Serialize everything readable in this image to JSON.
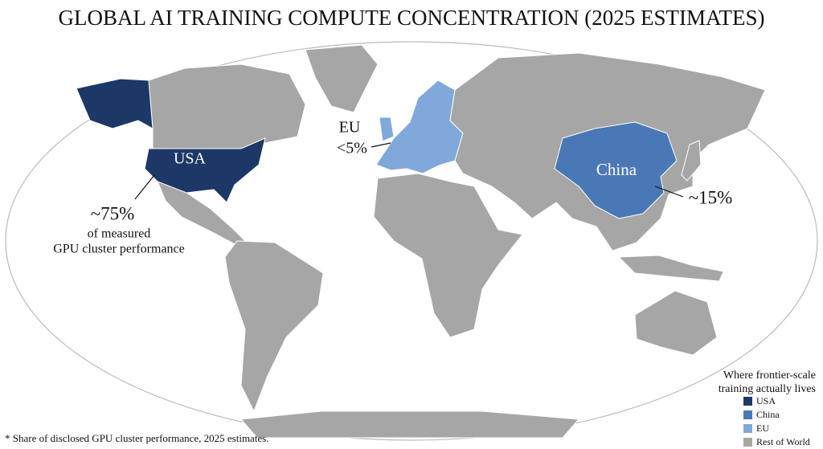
{
  "title": "GLOBAL AI TRAINING COMPUTE CONCENTRATION (2025 ESTIMATES)",
  "regions": {
    "usa": {
      "label": "USA",
      "share": "~75%",
      "note": [
        "of measured",
        "GPU cluster performance"
      ]
    },
    "eu": {
      "label": "EU",
      "share": "<5%"
    },
    "china": {
      "label": "China",
      "share": "~15%"
    }
  },
  "legend": {
    "title": [
      "Where frontier-scale",
      "training actually lives"
    ],
    "items": [
      {
        "name": "USA",
        "color": "#1d3867"
      },
      {
        "name": "China",
        "color": "#4a78b6"
      },
      {
        "name": "EU",
        "color": "#80a8da"
      },
      {
        "name": "Rest of World",
        "color": "#a6a6a6"
      }
    ]
  },
  "footnote": "* Share of disclosed GPU cluster performance, 2025 estimates."
}
